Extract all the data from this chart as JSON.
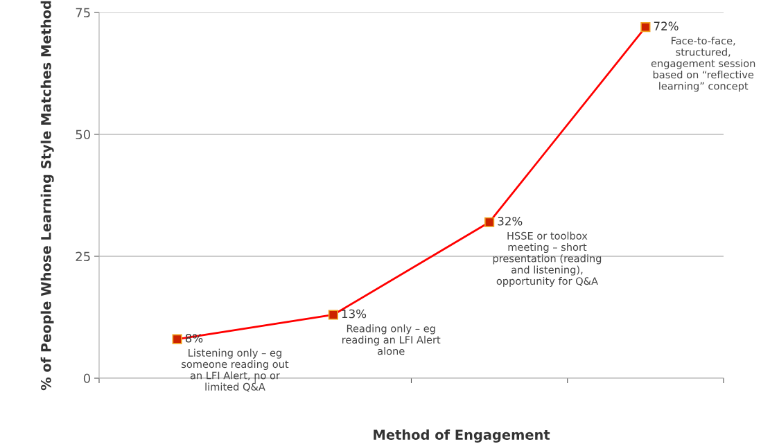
{
  "chart_data": {
    "type": "line",
    "xlabel": "Method of Engagement",
    "ylabel": "% of People Whose Learning Style Matches Method",
    "categories": [
      "Listening only – eg\nsomeone reading out\nan LFI Alert, no or\nlimited Q&A",
      "Reading only – eg\nreading an LFI Alert\nalone",
      "HSSE or toolbox\nmeeting – short\npresentation (reading\nand listening),\nopportunity for Q&A",
      "Face-to-face,\nstructured,\nengagement session\nbased on “reflective\nlearning” concept"
    ],
    "series": [
      {
        "color": "#ff0000",
        "values": [
          8,
          13,
          32,
          72
        ],
        "value_labels": [
          "8%",
          "13%",
          "32%",
          "72%"
        ]
      }
    ],
    "ylim": [
      0,
      75
    ],
    "yticks": [
      0,
      25,
      50,
      75
    ],
    "grid": "y",
    "marker": "square",
    "line_style": "solid"
  }
}
